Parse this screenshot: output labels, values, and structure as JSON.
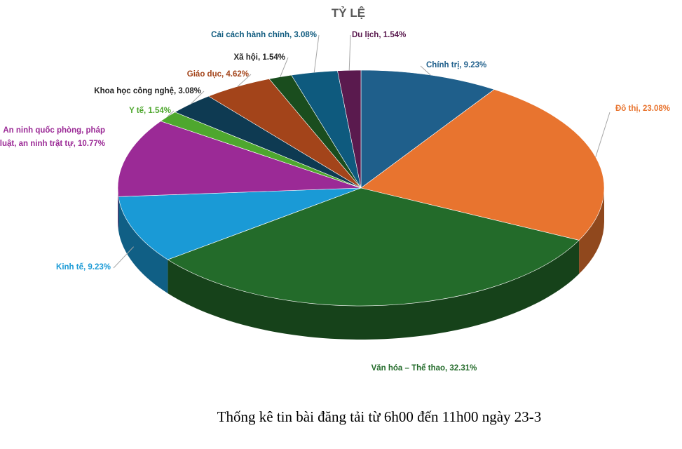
{
  "chart_data": {
    "type": "pie",
    "title": "TỶ LỆ",
    "categories": [
      "Chính trị",
      "Đô thị",
      "Văn hóa – Thể thao",
      "Kinh tế",
      "An ninh quốc phòng, pháp luật, an ninh trật tự",
      "Y tế",
      "Khoa học công nghệ",
      "Giáo dục",
      "Xã hội",
      "Cải cách hành chính",
      "Du lịch"
    ],
    "values": [
      9.23,
      23.08,
      32.31,
      9.23,
      10.77,
      1.54,
      3.08,
      4.62,
      1.54,
      3.08,
      1.54
    ],
    "value_labels": [
      "9.23%",
      "23.08%",
      "32.31%",
      "9.23%",
      "10.77%",
      "1.54%",
      "3.08%",
      "4.62%",
      "1.54%",
      "3.08%",
      "1.54%"
    ],
    "colors": [
      "#1f5f8b",
      "#e8742f",
      "#236b2a",
      "#1a9ad6",
      "#9b2a96",
      "#4ea72e",
      "#0e3a52",
      "#a3441a",
      "#1a4d1e",
      "#0e5a7e",
      "#5a1a4e"
    ]
  },
  "caption": "Thống kê tin bài đăng tải từ 6h00 đến 11h00 ngày 23-3"
}
